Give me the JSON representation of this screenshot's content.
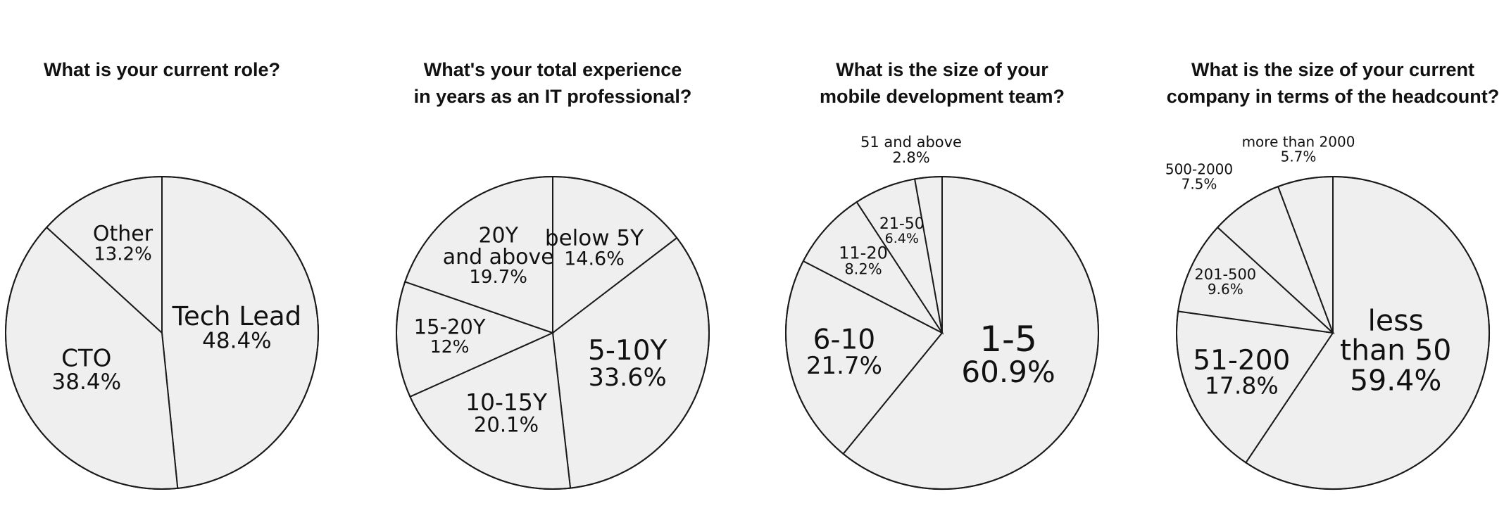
{
  "chart_data": [
    {
      "type": "pie",
      "title_lines": [
        "What is your current role?"
      ],
      "slices": [
        {
          "label_lines": [
            "Tech Lead"
          ],
          "value": 48.4,
          "value_text": "48.4%"
        },
        {
          "label_lines": [
            "CTO"
          ],
          "value": 38.4,
          "value_text": "38.4%"
        },
        {
          "label_lines": [
            "Other"
          ],
          "value": 13.2,
          "value_text": "13.2%"
        }
      ]
    },
    {
      "type": "pie",
      "title_lines": [
        "What's your total experience",
        "in years as an IT professional?"
      ],
      "slices": [
        {
          "label_lines": [
            "below 5Y"
          ],
          "value": 14.6,
          "value_text": "14.6%"
        },
        {
          "label_lines": [
            "5-10Y"
          ],
          "value": 33.6,
          "value_text": "33.6%"
        },
        {
          "label_lines": [
            "10-15Y"
          ],
          "value": 20.1,
          "value_text": "20.1%"
        },
        {
          "label_lines": [
            "15-20Y"
          ],
          "value": 12,
          "value_text": "12%"
        },
        {
          "label_lines": [
            "20Y",
            "and above"
          ],
          "value": 19.7,
          "value_text": "19.7%"
        }
      ]
    },
    {
      "type": "pie",
      "title_lines": [
        "What is the size of your",
        "mobile development team?"
      ],
      "slices": [
        {
          "label_lines": [
            "1-5"
          ],
          "value": 60.9,
          "value_text": "60.9%"
        },
        {
          "label_lines": [
            "6-10"
          ],
          "value": 21.7,
          "value_text": "21.7%"
        },
        {
          "label_lines": [
            "11-20"
          ],
          "value": 8.2,
          "value_text": "8.2%"
        },
        {
          "label_lines": [
            "21-50"
          ],
          "value": 6.4,
          "value_text": "6.4%"
        },
        {
          "label_lines": [
            "51 and above"
          ],
          "value": 2.8,
          "value_text": "2.8%"
        }
      ]
    },
    {
      "type": "pie",
      "title_lines": [
        "What is the size of your current",
        "company in terms of the headcount?"
      ],
      "slices": [
        {
          "label_lines": [
            "less",
            "than 50"
          ],
          "value": 59.4,
          "value_text": "59.4%"
        },
        {
          "label_lines": [
            "51-200"
          ],
          "value": 17.8,
          "value_text": "17.8%"
        },
        {
          "label_lines": [
            "201-500"
          ],
          "value": 9.6,
          "value_text": "9.6%"
        },
        {
          "label_lines": [
            "500-2000"
          ],
          "value": 7.5,
          "value_text": "7.5%"
        },
        {
          "label_lines": [
            "more than 2000"
          ],
          "value": 5.7,
          "value_text": "5.7%"
        }
      ]
    }
  ]
}
